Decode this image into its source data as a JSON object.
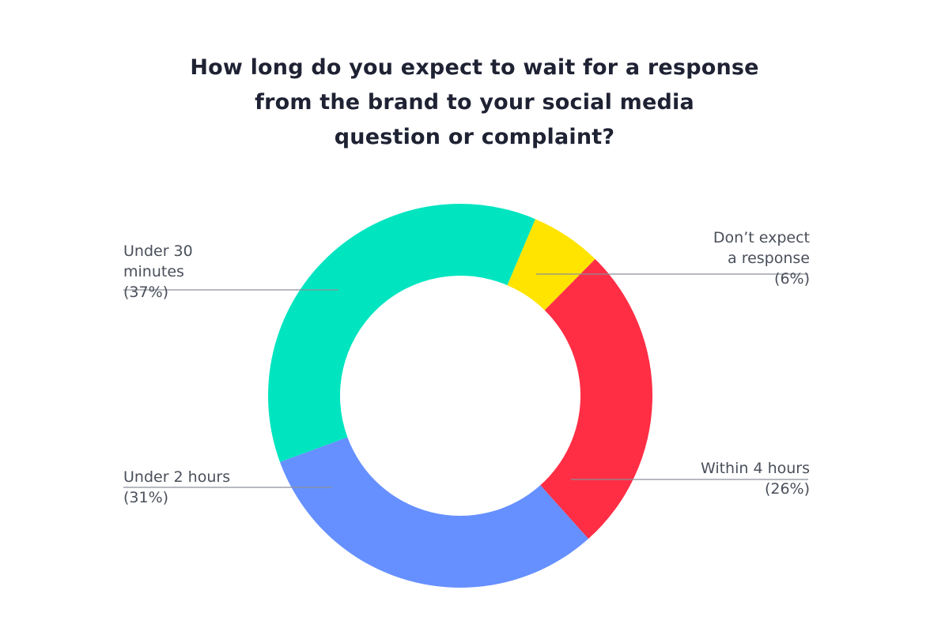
{
  "chart_data": {
    "type": "pie",
    "variant": "donut",
    "title": "How long do you expect to wait for a response from the brand to your social media question or complaint?",
    "title_lines": [
      "How long do you expect to wait for a response",
      "from the brand to your social media",
      "question or complaint?"
    ],
    "slices": [
      {
        "name": "Don’t expect a response",
        "value": 6,
        "color": "#FFE400",
        "label_lines": [
          "Don’t expect",
          "a response"
        ],
        "value_label": "(6%)",
        "label_side": "right"
      },
      {
        "name": "Within 4 hours",
        "value": 26,
        "color": "#FF2E45",
        "label_lines": [
          "Within 4 hours"
        ],
        "value_label": "(26%)",
        "label_side": "right"
      },
      {
        "name": "Under 2 hours",
        "value": 31,
        "color": "#6690FF",
        "label_lines": [
          "Under 2 hours"
        ],
        "value_label": "(31%)",
        "label_side": "left"
      },
      {
        "name": "Under 30 minutes",
        "value": 37,
        "color": "#00E5C0",
        "label_lines": [
          "Under 30",
          "minutes"
        ],
        "value_label": "(37%)",
        "label_side": "left"
      }
    ],
    "leader_line_color": "#8a8f99"
  }
}
